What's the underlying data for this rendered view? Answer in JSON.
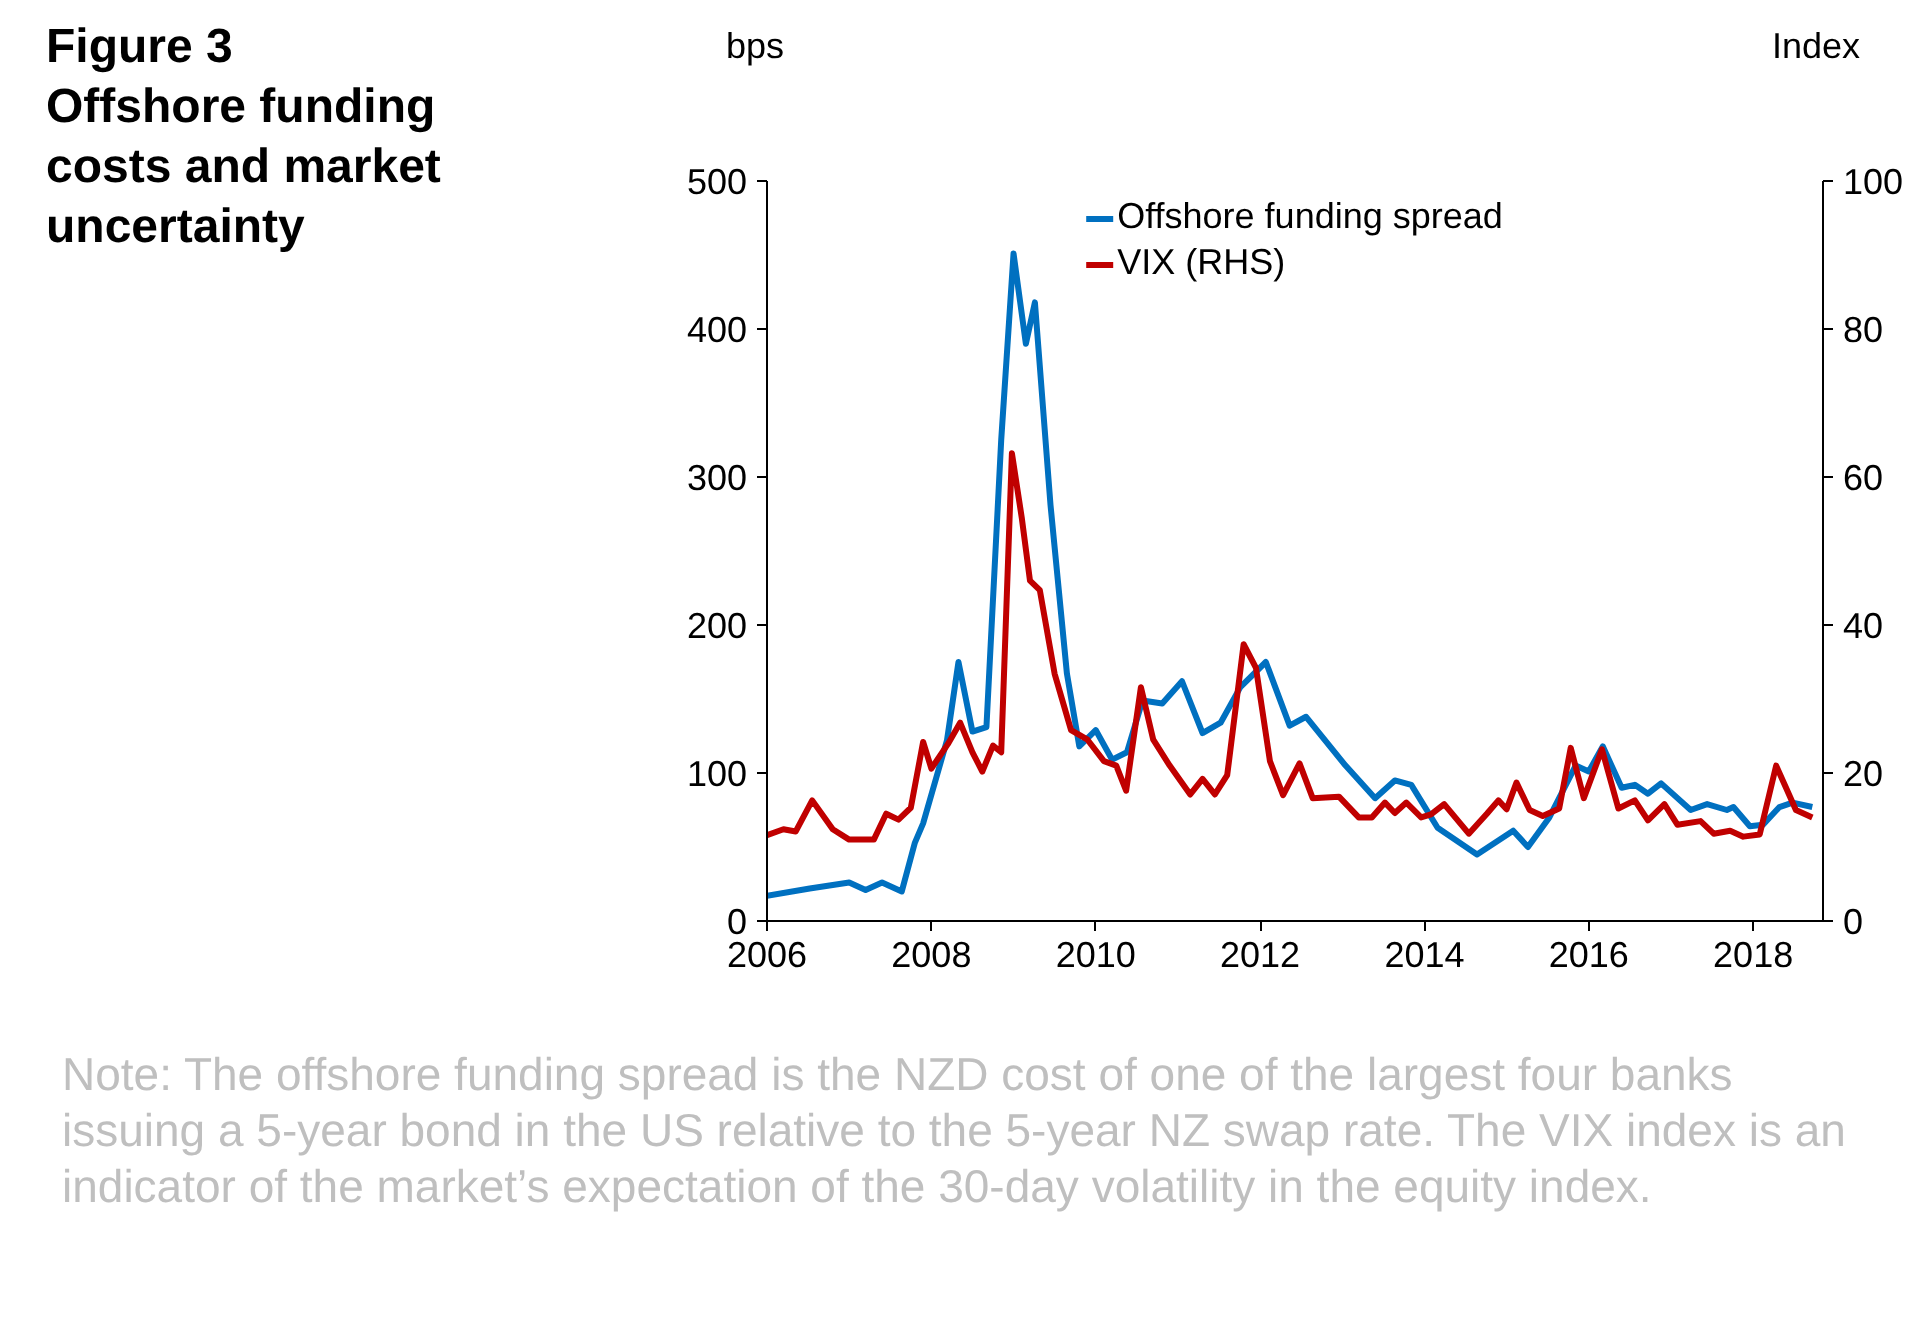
{
  "chart_data": {
    "type": "line",
    "title": "Figure 3",
    "subtitle": "Offshore funding costs and market uncertainty",
    "ylabel": "bps",
    "y2label": "Index",
    "xlim": [
      2006,
      2018.85
    ],
    "xticks": [
      2006,
      2008,
      2010,
      2012,
      2014,
      2016,
      2018
    ],
    "ylim": [
      0,
      500
    ],
    "yticks": [
      0,
      100,
      200,
      300,
      400,
      500
    ],
    "y2lim": [
      0,
      100
    ],
    "y2ticks": [
      0,
      20,
      40,
      60,
      80,
      100
    ],
    "legend": "top",
    "grid": false,
    "line_style": "solid",
    "marker": "none",
    "series": [
      {
        "name": "Offshore funding spread",
        "color": "#0070c0",
        "x": [
          2006.0,
          2006.52,
          2007.0,
          2007.2,
          2007.4,
          2007.64,
          2007.8,
          2007.9,
          2008.19,
          2008.33,
          2008.5,
          2008.67,
          2008.85,
          2009.0,
          2009.15,
          2009.26,
          2009.45,
          2009.65,
          2009.8,
          2010.0,
          2010.2,
          2010.38,
          2010.57,
          2010.81,
          2011.05,
          2011.3,
          2011.52,
          2011.76,
          2012.07,
          2012.36,
          2012.56,
          2013.04,
          2013.4,
          2013.64,
          2013.84,
          2014.16,
          2014.64,
          2015.08,
          2015.26,
          2015.52,
          2015.84,
          2016.0,
          2016.17,
          2016.4,
          2016.56,
          2016.72,
          2016.88,
          2017.24,
          2017.44,
          2017.68,
          2017.76,
          2017.96,
          2018.12,
          2018.32,
          2018.48,
          2018.72
        ],
        "values": [
          17,
          22,
          26,
          21,
          26,
          20,
          53,
          66,
          122,
          175,
          128,
          131,
          325,
          451,
          390,
          418,
          281,
          167,
          118,
          129,
          109,
          114,
          149,
          147,
          162,
          127,
          134,
          158,
          175,
          132,
          138,
          105,
          83,
          95,
          92,
          63,
          45,
          61,
          50,
          70,
          105,
          101,
          118,
          90,
          92,
          86,
          93,
          75,
          79,
          75,
          77,
          64,
          65,
          77,
          80,
          77
        ]
      },
      {
        "name": "VIX (RHS)",
        "color": "#c00000",
        "axis": "y2",
        "x": [
          2006.0,
          2006.2,
          2006.35,
          2006.55,
          2006.8,
          2007.0,
          2007.3,
          2007.45,
          2007.6,
          2007.75,
          2007.9,
          2008.0,
          2008.2,
          2008.35,
          2008.5,
          2008.62,
          2008.75,
          2008.85,
          2008.98,
          2009.1,
          2009.2,
          2009.32,
          2009.5,
          2009.7,
          2009.9,
          2010.1,
          2010.25,
          2010.37,
          2010.55,
          2010.7,
          2010.9,
          2011.15,
          2011.3,
          2011.45,
          2011.6,
          2011.8,
          2011.95,
          2012.12,
          2012.28,
          2012.48,
          2012.64,
          2012.96,
          2013.2,
          2013.36,
          2013.52,
          2013.64,
          2013.78,
          2013.96,
          2014.08,
          2014.24,
          2014.54,
          2014.76,
          2014.9,
          2015.0,
          2015.12,
          2015.28,
          2015.44,
          2015.64,
          2015.78,
          2015.94,
          2016.16,
          2016.36,
          2016.56,
          2016.72,
          2016.92,
          2017.08,
          2017.36,
          2017.52,
          2017.72,
          2017.88,
          2018.08,
          2018.28,
          2018.4,
          2018.52,
          2018.72
        ],
        "values": [
          11.6,
          12.4,
          12.1,
          16.3,
          12.4,
          11,
          11,
          14.5,
          13.7,
          15.3,
          24.2,
          20.6,
          23.9,
          26.8,
          22.8,
          20.2,
          23.7,
          22.8,
          63.2,
          54.5,
          46,
          44.7,
          33.4,
          25.8,
          24.5,
          21.6,
          21,
          17.6,
          31.6,
          24.5,
          21,
          17.1,
          19.2,
          17.1,
          19.7,
          37.4,
          34.2,
          21.6,
          17,
          21.3,
          16.6,
          16.8,
          14,
          14,
          16,
          14.6,
          16,
          14,
          14.4,
          15.8,
          11.8,
          14.5,
          16.3,
          15.1,
          18.7,
          15,
          14.2,
          15.2,
          23.4,
          16.6,
          23.2,
          15.2,
          16.3,
          13.6,
          15.8,
          13,
          13.5,
          11.8,
          12.2,
          11.4,
          11.7,
          21,
          18,
          15,
          14
        ]
      }
    ],
    "annotations": [
      "Note: The offshore funding spread is the NZD cost of one of the largest four banks issuing a 5-year bond in the US relative to the 5-year NZ swap rate. The VIX index is an indicator of the market’s expectation of the 30-day volatility in the equity index."
    ]
  }
}
